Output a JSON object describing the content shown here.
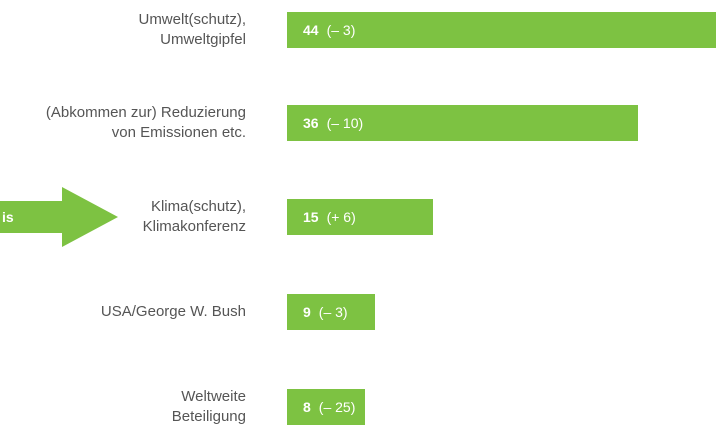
{
  "chart_data": {
    "type": "bar",
    "orientation": "horizontal",
    "categories": [
      "Umwelt(schutz),\nUmweltgipfel",
      "(Abkommen zur) Reduzierung\nvon Emissionen etc.",
      "Klima(schutz),\nKlimakonferenz",
      "USA/George W. Bush",
      "Weltweite\nBeteiligung"
    ],
    "values": [
      44,
      36,
      15,
      9,
      8
    ],
    "change_labels": [
      "(– 3)",
      "(– 10)",
      "(+ 6)",
      "(– 3)",
      "(– 25)"
    ],
    "color": "#7dc242",
    "annotation": "is"
  }
}
